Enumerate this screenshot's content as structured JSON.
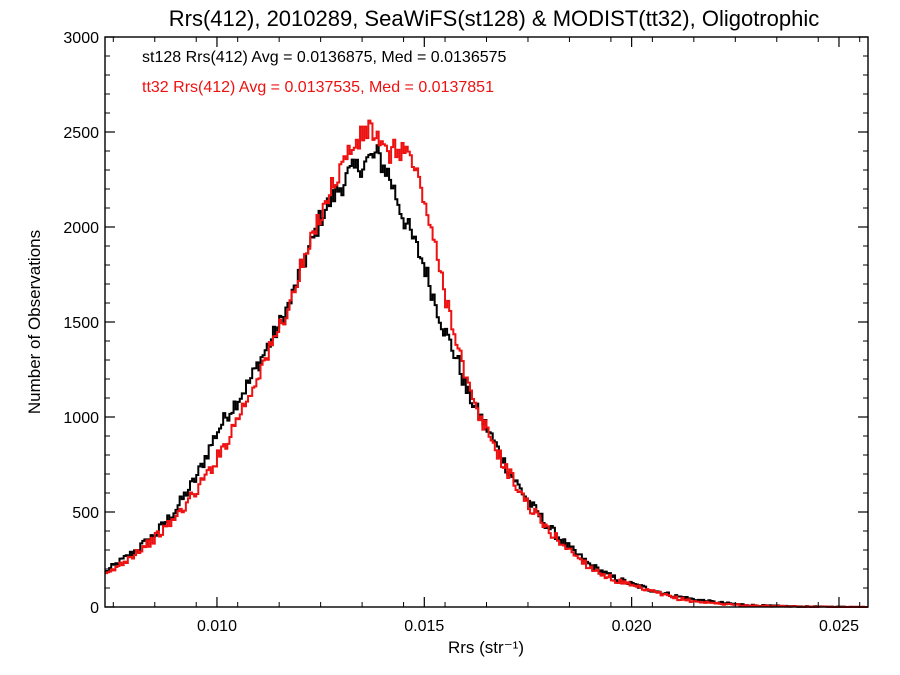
{
  "chart_data": {
    "type": "line",
    "title": "Rrs(412), 2010289, SeaWiFS(st128) & MODIST(tt32), Oligotrophic",
    "xlabel": "Rrs (str⁻¹)",
    "ylabel": "Number of Observations",
    "xlim": [
      0.0073,
      0.0257
    ],
    "ylim": [
      0,
      3000
    ],
    "xticks": [
      0.01,
      0.015,
      0.02,
      0.025
    ],
    "xtick_labels": [
      "0.010",
      "0.015",
      "0.020",
      "0.025"
    ],
    "yticks": [
      0,
      500,
      1000,
      1500,
      2000,
      2500,
      3000
    ],
    "ytick_labels": [
      "0",
      "500",
      "1000",
      "1500",
      "2000",
      "2500",
      "3000"
    ],
    "annotations": [
      {
        "text": "st128 Rrs(412) Avg = 0.0136875, Med = 0.0136575",
        "color": "#000000"
      },
      {
        "text": "tt32 Rrs(412) Avg = 0.0137535, Med = 0.0137851",
        "color": "#ee1111"
      }
    ],
    "series": [
      {
        "color": "#000000",
        "x": [
          0.0073,
          0.008,
          0.0085,
          0.009,
          0.0095,
          0.01,
          0.0103,
          0.0105,
          0.0108,
          0.011,
          0.0113,
          0.0115,
          0.0118,
          0.012,
          0.0123,
          0.0125,
          0.0128,
          0.013,
          0.0132,
          0.0135,
          0.0137,
          0.0139,
          0.014,
          0.0141,
          0.0143,
          0.0145,
          0.0147,
          0.015,
          0.0152,
          0.0155,
          0.0158,
          0.016,
          0.0163,
          0.0165,
          0.0168,
          0.017,
          0.0175,
          0.018,
          0.0185,
          0.019,
          0.0195,
          0.02,
          0.0205,
          0.021,
          0.0215,
          0.022,
          0.0225,
          0.023,
          0.024,
          0.025,
          0.0257
        ],
        "y": [
          180,
          290,
          380,
          510,
          680,
          920,
          1030,
          1090,
          1190,
          1280,
          1400,
          1480,
          1620,
          1760,
          1920,
          2050,
          2160,
          2220,
          2280,
          2330,
          2360,
          2380,
          2320,
          2300,
          2180,
          2050,
          1950,
          1800,
          1650,
          1450,
          1300,
          1150,
          1020,
          950,
          820,
          730,
          560,
          420,
          310,
          220,
          160,
          120,
          90,
          60,
          40,
          25,
          15,
          8,
          3,
          1,
          0
        ]
      },
      {
        "color": "#ee1111",
        "x": [
          0.0073,
          0.008,
          0.0085,
          0.009,
          0.0095,
          0.01,
          0.0103,
          0.0105,
          0.0108,
          0.011,
          0.0113,
          0.0115,
          0.0118,
          0.012,
          0.0123,
          0.0125,
          0.0128,
          0.013,
          0.0132,
          0.0135,
          0.0137,
          0.0139,
          0.014,
          0.0141,
          0.0143,
          0.0145,
          0.0147,
          0.015,
          0.0152,
          0.0155,
          0.0158,
          0.016,
          0.0163,
          0.0165,
          0.0168,
          0.017,
          0.0175,
          0.018,
          0.0185,
          0.019,
          0.0195,
          0.02,
          0.0205,
          0.021,
          0.0215,
          0.022,
          0.0225,
          0.023,
          0.024,
          0.025,
          0.0257
        ],
        "y": [
          160,
          280,
          360,
          470,
          610,
          780,
          900,
          1000,
          1120,
          1230,
          1360,
          1470,
          1610,
          1760,
          1930,
          2080,
          2220,
          2320,
          2400,
          2470,
          2530,
          2450,
          2390,
          2380,
          2400,
          2420,
          2350,
          2150,
          1950,
          1650,
          1400,
          1200,
          1000,
          940,
          800,
          720,
          540,
          400,
          300,
          210,
          150,
          110,
          80,
          50,
          30,
          20,
          12,
          6,
          2,
          1,
          0
        ]
      }
    ]
  }
}
